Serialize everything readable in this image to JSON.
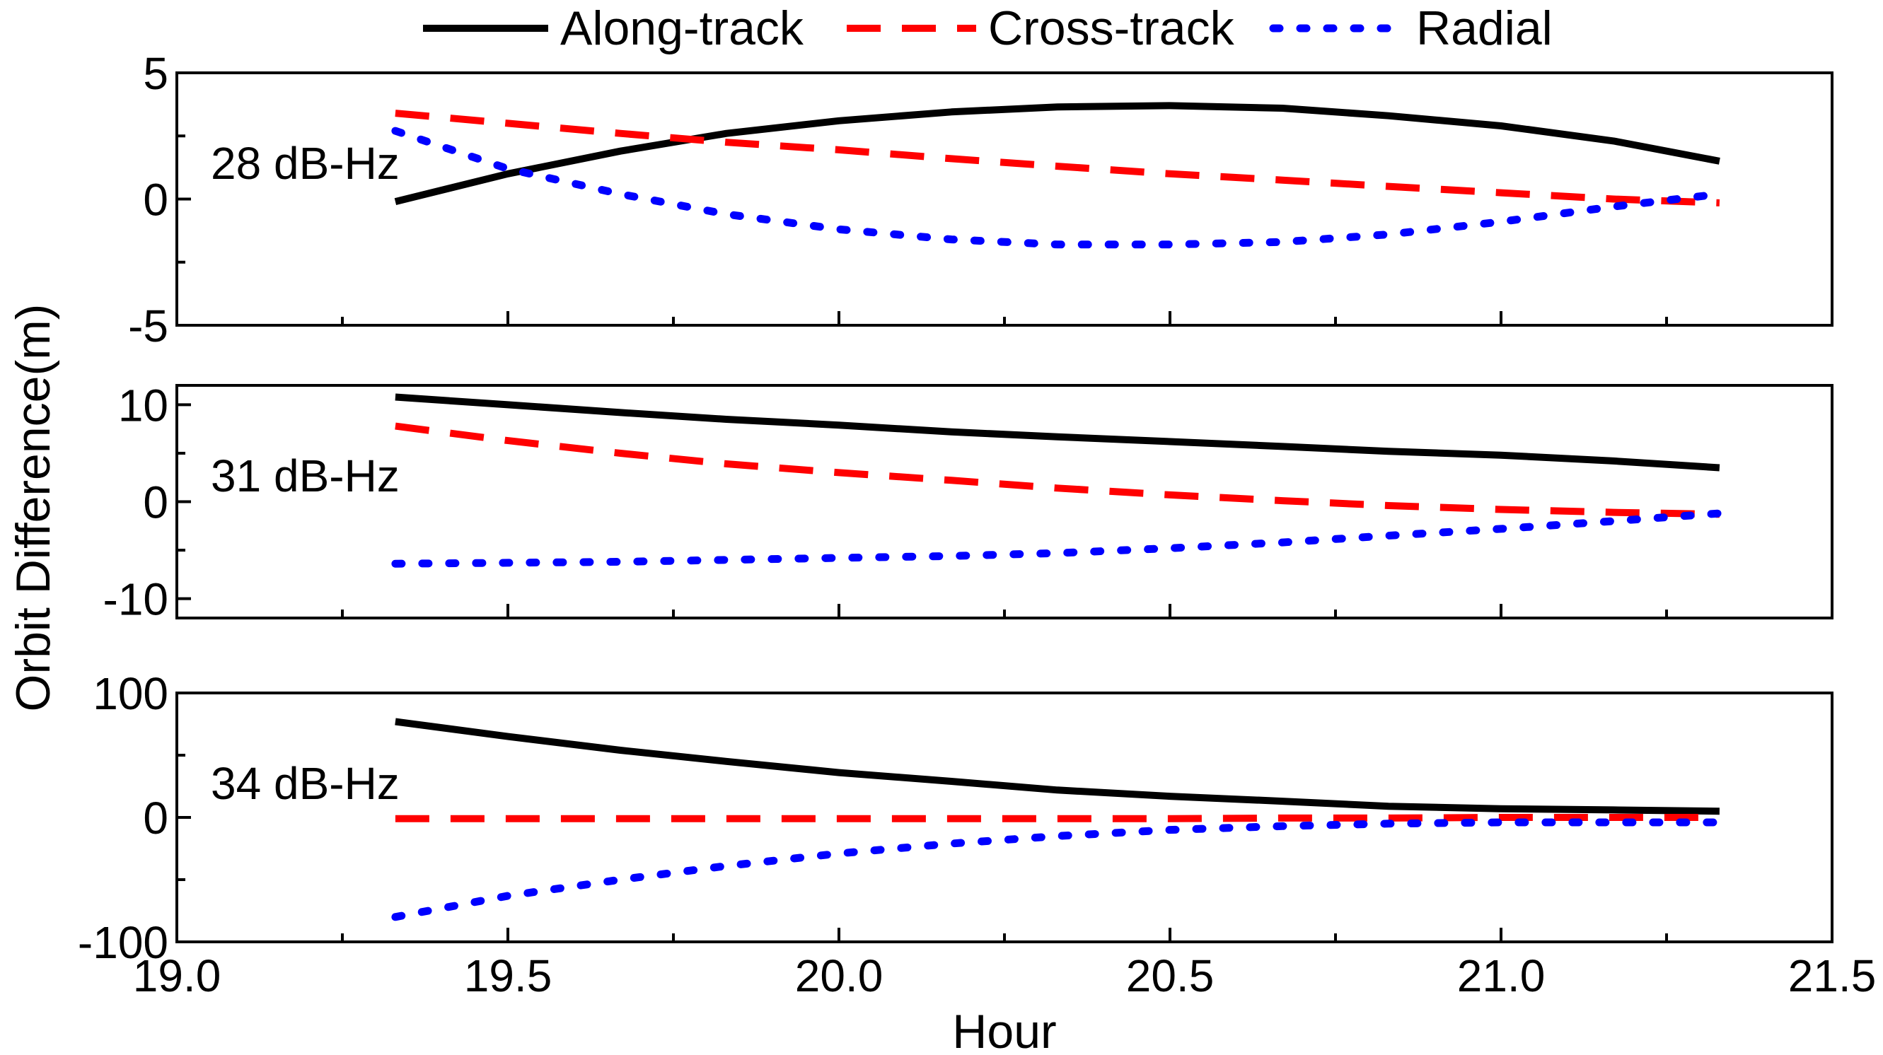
{
  "chart_data": [
    {
      "type": "line",
      "annotation": "28 dB-Hz",
      "xlim": [
        19.0,
        21.5
      ],
      "ylim": [
        -5,
        5
      ],
      "yticks": [
        -5,
        0,
        5
      ],
      "ytick_labels": [
        "-5",
        "0",
        "5"
      ],
      "series": [
        {
          "name": "Along-track",
          "color": "#000000",
          "style": "solid",
          "x": [
            19.33,
            19.5,
            19.67,
            19.83,
            20.0,
            20.17,
            20.33,
            20.5,
            20.67,
            20.83,
            21.0,
            21.17,
            21.33
          ],
          "values": [
            -0.1,
            1.0,
            1.9,
            2.6,
            3.1,
            3.45,
            3.65,
            3.7,
            3.6,
            3.3,
            2.9,
            2.3,
            1.5
          ]
        },
        {
          "name": "Cross-track",
          "color": "#ff0000",
          "style": "dashed",
          "x": [
            19.33,
            19.5,
            19.67,
            19.83,
            20.0,
            20.17,
            20.33,
            20.5,
            20.67,
            20.83,
            21.0,
            21.17,
            21.33
          ],
          "values": [
            3.4,
            3.0,
            2.6,
            2.25,
            1.95,
            1.6,
            1.3,
            1.0,
            0.75,
            0.5,
            0.25,
            0.0,
            -0.15
          ]
        },
        {
          "name": "Radial",
          "color": "#0000ff",
          "style": "dotted",
          "x": [
            19.33,
            19.5,
            19.67,
            19.83,
            20.0,
            20.17,
            20.33,
            20.5,
            20.67,
            20.83,
            21.0,
            21.17,
            21.33
          ],
          "values": [
            2.7,
            1.2,
            0.2,
            -0.6,
            -1.2,
            -1.6,
            -1.8,
            -1.8,
            -1.7,
            -1.4,
            -0.9,
            -0.3,
            0.2
          ]
        }
      ]
    },
    {
      "type": "line",
      "annotation": "31 dB-Hz",
      "xlim": [
        19.0,
        21.5
      ],
      "ylim": [
        -12,
        12
      ],
      "yticks": [
        -10,
        0,
        10
      ],
      "ytick_labels": [
        "-10",
        "0",
        "10"
      ],
      "series": [
        {
          "name": "Along-track",
          "color": "#000000",
          "style": "solid",
          "x": [
            19.33,
            19.5,
            19.67,
            19.83,
            20.0,
            20.17,
            20.33,
            20.5,
            20.67,
            20.83,
            21.0,
            21.17,
            21.33
          ],
          "values": [
            10.8,
            10.0,
            9.2,
            8.5,
            7.9,
            7.2,
            6.7,
            6.2,
            5.7,
            5.2,
            4.8,
            4.2,
            3.5
          ]
        },
        {
          "name": "Cross-track",
          "color": "#ff0000",
          "style": "dashed",
          "x": [
            19.33,
            19.5,
            19.67,
            19.83,
            20.0,
            20.17,
            20.33,
            20.5,
            20.67,
            20.83,
            21.0,
            21.17,
            21.33
          ],
          "values": [
            7.8,
            6.3,
            5.0,
            3.9,
            3.0,
            2.2,
            1.4,
            0.7,
            0.1,
            -0.4,
            -0.8,
            -1.1,
            -1.3
          ]
        },
        {
          "name": "Radial",
          "color": "#0000ff",
          "style": "dotted",
          "x": [
            19.33,
            19.5,
            19.67,
            19.83,
            20.0,
            20.17,
            20.33,
            20.5,
            20.67,
            20.83,
            21.0,
            21.17,
            21.33
          ],
          "values": [
            -6.4,
            -6.3,
            -6.2,
            -6.0,
            -5.8,
            -5.6,
            -5.3,
            -4.8,
            -4.2,
            -3.5,
            -2.8,
            -2.0,
            -1.2
          ]
        }
      ]
    },
    {
      "type": "line",
      "annotation": "34 dB-Hz",
      "xlim": [
        19.0,
        21.5
      ],
      "ylim": [
        -100,
        100
      ],
      "yticks": [
        -100,
        0,
        100
      ],
      "ytick_labels": [
        "-100",
        "0",
        "100"
      ],
      "series": [
        {
          "name": "Along-track",
          "color": "#000000",
          "style": "solid",
          "x": [
            19.33,
            19.5,
            19.67,
            19.83,
            20.0,
            20.17,
            20.33,
            20.5,
            20.67,
            20.83,
            21.0,
            21.17,
            21.33
          ],
          "values": [
            77,
            65,
            54,
            45,
            36,
            29,
            22,
            17,
            13,
            9,
            7,
            6,
            5
          ]
        },
        {
          "name": "Cross-track",
          "color": "#ff0000",
          "style": "dashed",
          "x": [
            19.33,
            19.5,
            19.67,
            19.83,
            20.0,
            20.17,
            20.33,
            20.5,
            20.67,
            20.83,
            21.0,
            21.17,
            21.33
          ],
          "values": [
            -1,
            -1,
            -1,
            -1,
            -1,
            -1,
            -1,
            -1,
            -0.5,
            -0.5,
            0,
            0,
            0
          ]
        },
        {
          "name": "Radial",
          "color": "#0000ff",
          "style": "dotted",
          "x": [
            19.33,
            19.5,
            19.67,
            19.83,
            20.0,
            20.17,
            20.33,
            20.5,
            20.67,
            20.83,
            21.0,
            21.17,
            21.33
          ],
          "values": [
            -80,
            -63,
            -50,
            -39,
            -29,
            -21,
            -15,
            -10,
            -7,
            -5,
            -4,
            -4,
            -4
          ]
        }
      ]
    }
  ],
  "x_axis": {
    "label": "Hour",
    "ticks": [
      19.0,
      19.5,
      20.0,
      20.5,
      21.0,
      21.5
    ],
    "tick_labels": [
      "19.0",
      "19.5",
      "20.0",
      "20.5",
      "21.0",
      "21.5"
    ],
    "minor_ticks": [
      19.25,
      19.75,
      20.25,
      20.75,
      21.25
    ]
  },
  "y_axis": {
    "label": "Orbit Difference(m)"
  },
  "legend": {
    "placement": "top",
    "entries": [
      "Along-track",
      "Cross-track",
      "Radial"
    ]
  },
  "grid": false
}
